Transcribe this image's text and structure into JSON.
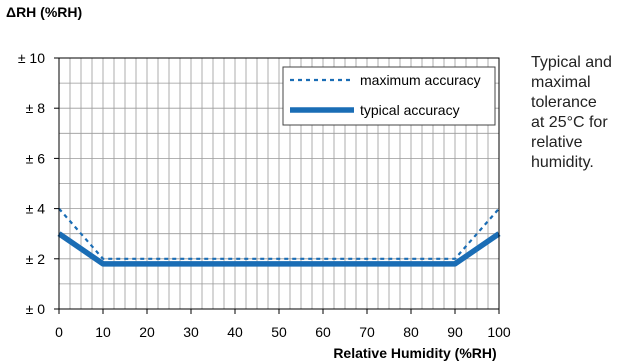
{
  "chart_data": {
    "type": "line",
    "ylabel": "ΔRH (%RH)",
    "xlabel": "Relative Humidity (%RH)",
    "x": [
      0,
      10,
      20,
      30,
      40,
      50,
      60,
      70,
      80,
      90,
      100
    ],
    "xlim": [
      0,
      100
    ],
    "ylim": [
      0,
      10
    ],
    "xticks": [
      0,
      10,
      20,
      30,
      40,
      50,
      60,
      70,
      80,
      90,
      100
    ],
    "yticks": [
      0,
      2,
      4,
      6,
      8,
      10
    ],
    "ytick_labels": [
      "± 0",
      "± 2",
      "± 4",
      "± 6",
      "± 8",
      "± 10"
    ],
    "grid": true,
    "legend_position": "top-right",
    "series": [
      {
        "name": "maximum accuracy",
        "style": "dotted",
        "color": "#1a6db5",
        "points": [
          [
            0,
            4
          ],
          [
            10,
            2
          ],
          [
            90,
            2
          ],
          [
            100,
            4
          ]
        ]
      },
      {
        "name": "typical accuracy",
        "style": "solid-thick",
        "color": "#1a6db5",
        "points": [
          [
            0,
            3
          ],
          [
            10,
            1.8
          ],
          [
            90,
            1.8
          ],
          [
            100,
            3
          ]
        ]
      }
    ]
  },
  "caption": [
    "Typical and",
    "maximal",
    "tolerance",
    "at 25°C for",
    "relative",
    "humidity."
  ]
}
